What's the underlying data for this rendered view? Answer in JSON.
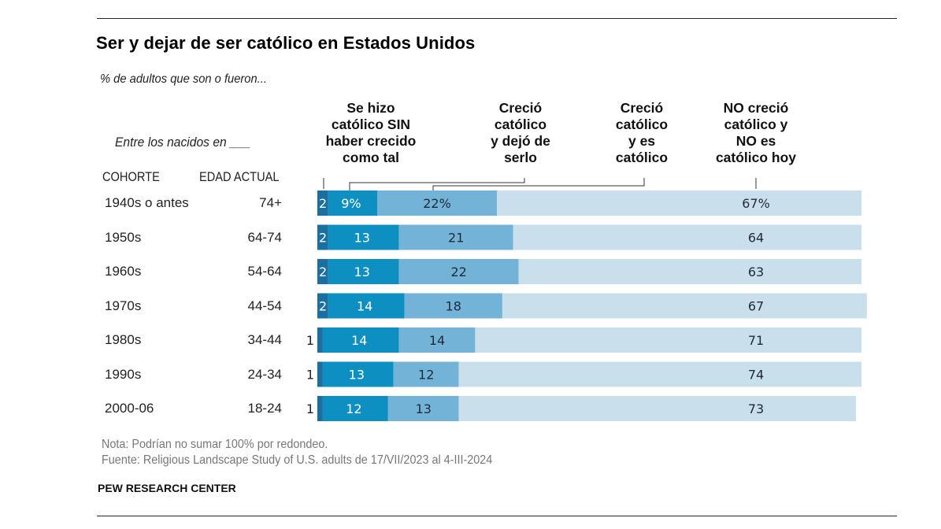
{
  "chart_data": {
    "type": "bar",
    "orientation": "horizontal",
    "stacked": true,
    "title": "Ser y dejar de ser católico en Estados Unidos",
    "subtitle": "% de adultos que son o fueron...",
    "row_intro": "Entre los nacidos en ___",
    "column_headers": {
      "cohort": "COHORTE",
      "age": "EDAD ACTUAL"
    },
    "categories": [
      "1940s o antes",
      "1950s",
      "1960s",
      "1970s",
      "1980s",
      "1990s",
      "2000-06"
    ],
    "ages": [
      "74+",
      "64-74",
      "54-64",
      "44-54",
      "34-44",
      "24-34",
      "18-24"
    ],
    "series": [
      {
        "name": "Se hizo católico SIN haber crecido como tal",
        "color": "#1a6fa0",
        "text_color": "#ffffff",
        "values": [
          2,
          2,
          2,
          2,
          1,
          1,
          1
        ]
      },
      {
        "name": "Creció católico y es católico",
        "color": "#0e8fc2",
        "text_color": "#ffffff",
        "values": [
          9,
          13,
          13,
          14,
          14,
          13,
          12
        ]
      },
      {
        "name": "Creció católico y dejó de serlo",
        "color": "#74b3d8",
        "text_color": "#1e2a36",
        "values": [
          22,
          21,
          22,
          18,
          14,
          12,
          13
        ]
      },
      {
        "name": "NO creció católico y NO es católico hoy",
        "color": "#c9dfec",
        "text_color": "#1e2a36",
        "values": [
          67,
          64,
          63,
          67,
          71,
          74,
          73
        ]
      }
    ],
    "first_row_labels": [
      "2",
      "9%",
      "22%",
      "67%"
    ],
    "legend_labels": [
      [
        "Se hizo",
        "católico SIN",
        "haber crecido",
        "como tal"
      ],
      [
        "Creció",
        "católico",
        "y dejó de",
        "serlo"
      ],
      [
        "Creció",
        "católico",
        "y es",
        "católico"
      ],
      [
        "NO creció",
        "católico y",
        "NO es",
        "católico hoy"
      ]
    ],
    "xlim": [
      0,
      100
    ],
    "unit": "%"
  },
  "notes": {
    "note": "Nota: Podrían no sumar 100% por redondeo.",
    "source": "Fuente: Religious Landscape Study of U.S. adults de 17/VII/2023 al 4-III-2024"
  },
  "brand": "PEW RESEARCH CENTER"
}
